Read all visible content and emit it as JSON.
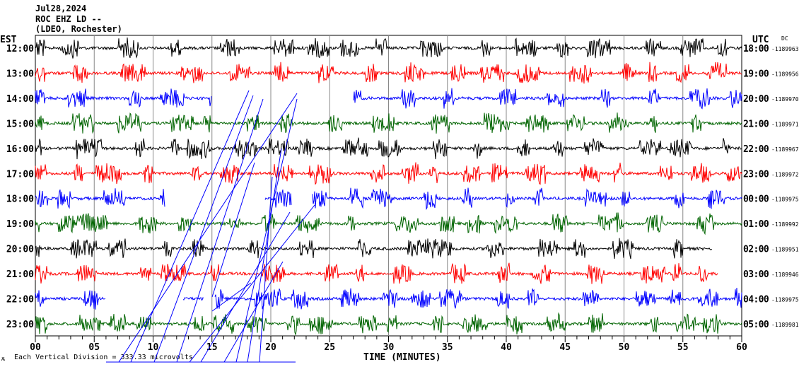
{
  "chart_data": {
    "type": "line",
    "title": "Jul28,2024",
    "station": "ROC EHZ LD --",
    "network": "(LDEO, Rochester)",
    "left_axis_label": "EST",
    "right_axis_label": "UTC",
    "dc_label": "DC",
    "xlabel": "TIME (MINUTES)",
    "xlim": [
      0,
      60
    ],
    "x_ticks": [
      "00",
      "05",
      "10",
      "15",
      "20",
      "25",
      "30",
      "35",
      "40",
      "45",
      "50",
      "55",
      "60"
    ],
    "footer": "Each Vertical Division =  333.33 microvolts",
    "rows": [
      {
        "est": "12:00",
        "utc": "18:00",
        "dc": "-1189963",
        "color": "#000000",
        "gaps": [],
        "end": 60
      },
      {
        "est": "13:00",
        "utc": "19:00",
        "dc": "-1189956",
        "color": "#ff0000",
        "gaps": [],
        "end": 60
      },
      {
        "est": "14:00",
        "utc": "20:00",
        "dc": "-1189970",
        "color": "#0000ff",
        "gaps": [
          [
            15,
            27
          ]
        ],
        "end": 60
      },
      {
        "est": "15:00",
        "utc": "21:00",
        "dc": "-1189971",
        "color": "#006400",
        "gaps": [],
        "end": 60
      },
      {
        "est": "16:00",
        "utc": "22:00",
        "dc": "-1189967",
        "color": "#000000",
        "gaps": [],
        "end": 60
      },
      {
        "est": "17:00",
        "utc": "23:00",
        "dc": "-1189972",
        "color": "#ff0000",
        "gaps": [],
        "end": 60
      },
      {
        "est": "18:00",
        "utc": "00:00",
        "dc": "-1189975",
        "color": "#0000ff",
        "gaps": [
          [
            11,
            19.5
          ],
          [
            21.8,
            23.5
          ]
        ],
        "end": 60
      },
      {
        "est": "19:00",
        "utc": "01:00",
        "dc": "-1189992",
        "color": "#006400",
        "gaps": [],
        "end": 60
      },
      {
        "est": "20:00",
        "utc": "02:00",
        "dc": "-1189951",
        "color": "#000000",
        "gaps": [],
        "end": 57.5
      },
      {
        "est": "21:00",
        "utc": "03:00",
        "dc": "-1189946",
        "color": "#ff0000",
        "gaps": [],
        "end": 58
      },
      {
        "est": "22:00",
        "utc": "04:00",
        "dc": "-1189975",
        "color": "#0000ff",
        "gaps": [
          [
            6,
            12.5
          ],
          [
            14.3,
            15.2
          ]
        ],
        "end": 60
      },
      {
        "est": "23:00",
        "utc": "05:00",
        "dc": "-1189981",
        "color": "#006400",
        "gaps": [],
        "end": 60
      }
    ]
  }
}
